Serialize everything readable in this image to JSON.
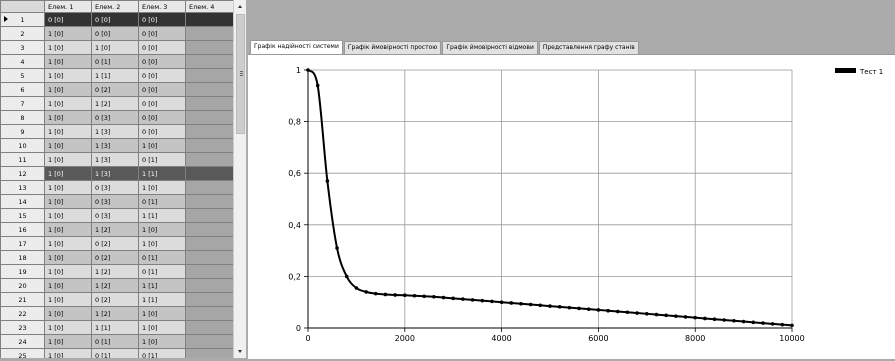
{
  "grid": {
    "columns": [
      "Елем. 1",
      "Елем. 2",
      "Елем. 3",
      "Елем. 4"
    ],
    "rows": [
      {
        "n": "1",
        "e1": "0 [0]",
        "e2": "0 [0]",
        "e3": "0 [0]"
      },
      {
        "n": "2",
        "e1": "1 [0]",
        "e2": "0 [0]",
        "e3": "0 [0]"
      },
      {
        "n": "3",
        "e1": "1 [0]",
        "e2": "1 [0]",
        "e3": "0 [0]"
      },
      {
        "n": "4",
        "e1": "1 [0]",
        "e2": "0 [1]",
        "e3": "0 [0]"
      },
      {
        "n": "5",
        "e1": "1 [0]",
        "e2": "1 [1]",
        "e3": "0 [0]"
      },
      {
        "n": "6",
        "e1": "1 [0]",
        "e2": "0 [2]",
        "e3": "0 [0]"
      },
      {
        "n": "7",
        "e1": "1 [0]",
        "e2": "1 [2]",
        "e3": "0 [0]"
      },
      {
        "n": "8",
        "e1": "1 [0]",
        "e2": "0 [3]",
        "e3": "0 [0]"
      },
      {
        "n": "9",
        "e1": "1 [0]",
        "e2": "1 [3]",
        "e3": "0 [0]"
      },
      {
        "n": "10",
        "e1": "1 [0]",
        "e2": "1 [3]",
        "e3": "1 [0]"
      },
      {
        "n": "11",
        "e1": "1 [0]",
        "e2": "1 [3]",
        "e3": "0 [1]"
      },
      {
        "n": "12",
        "e1": "1 [0]",
        "e2": "1 [3]",
        "e3": "1 [1]"
      },
      {
        "n": "13",
        "e1": "1 [0]",
        "e2": "0 [3]",
        "e3": "1 [0]"
      },
      {
        "n": "14",
        "e1": "1 [0]",
        "e2": "0 [3]",
        "e3": "0 [1]"
      },
      {
        "n": "15",
        "e1": "1 [0]",
        "e2": "0 [3]",
        "e3": "1 [1]"
      },
      {
        "n": "16",
        "e1": "1 [0]",
        "e2": "1 [2]",
        "e3": "1 [0]"
      },
      {
        "n": "17",
        "e1": "1 [0]",
        "e2": "0 [2]",
        "e3": "1 [0]"
      },
      {
        "n": "18",
        "e1": "1 [0]",
        "e2": "0 [2]",
        "e3": "0 [1]"
      },
      {
        "n": "19",
        "e1": "1 [0]",
        "e2": "1 [2]",
        "e3": "0 [1]"
      },
      {
        "n": "20",
        "e1": "1 [0]",
        "e2": "1 [2]",
        "e3": "1 [1]"
      },
      {
        "n": "21",
        "e1": "1 [0]",
        "e2": "0 [2]",
        "e3": "1 [1]"
      },
      {
        "n": "22",
        "e1": "1 [0]",
        "e2": "1 [2]",
        "e3": "1 [0]"
      },
      {
        "n": "23",
        "e1": "1 [0]",
        "e2": "1 [1]",
        "e3": "1 [0]"
      },
      {
        "n": "24",
        "e1": "1 [0]",
        "e2": "0 [1]",
        "e3": "1 [0]"
      },
      {
        "n": "25",
        "e1": "1 [0]",
        "e2": "0 [1]",
        "e3": "0 [1]"
      }
    ],
    "selected_row": "1",
    "highlighted_row": "12"
  },
  "tabs": [
    {
      "label": "Графік надійності системи",
      "active": true
    },
    {
      "label": "Графік ймовірності простою",
      "active": false
    },
    {
      "label": "Графік ймовірності відмови",
      "active": false
    },
    {
      "label": "Представлення графу станів",
      "active": false
    }
  ],
  "chart_data": {
    "type": "line",
    "xlim": [
      0,
      10000
    ],
    "ylim": [
      0,
      1
    ],
    "xticks": [
      "0",
      "2000",
      "4000",
      "6000",
      "8000",
      "10000"
    ],
    "yticks": [
      "0",
      "0,2",
      "0,4",
      "0,6",
      "0,8",
      "1"
    ],
    "grid": true,
    "legend_position": "top-right",
    "series": [
      {
        "name": "Тест 1",
        "x": [
          0,
          200,
          400,
          600,
          800,
          1000,
          1200,
          1400,
          1600,
          1800,
          2000,
          2200,
          2400,
          2600,
          2800,
          3000,
          3200,
          3400,
          3600,
          3800,
          4000,
          4200,
          4400,
          4600,
          4800,
          5000,
          5200,
          5400,
          5600,
          5800,
          6000,
          6200,
          6400,
          6600,
          6800,
          7000,
          7200,
          7400,
          7600,
          7800,
          8000,
          8200,
          8400,
          8600,
          8800,
          9000,
          9200,
          9400,
          9600,
          9800,
          10000
        ],
        "y": [
          1,
          0.94,
          0.57,
          0.31,
          0.2,
          0.155,
          0.14,
          0.133,
          0.13,
          0.128,
          0.127,
          0.125,
          0.123,
          0.121,
          0.118,
          0.115,
          0.112,
          0.109,
          0.106,
          0.103,
          0.1,
          0.097,
          0.094,
          0.091,
          0.088,
          0.085,
          0.082,
          0.079,
          0.076,
          0.073,
          0.07,
          0.067,
          0.064,
          0.061,
          0.058,
          0.055,
          0.052,
          0.049,
          0.046,
          0.043,
          0.04,
          0.037,
          0.034,
          0.031,
          0.028,
          0.025,
          0.022,
          0.019,
          0.016,
          0.013,
          0.01
        ]
      }
    ]
  }
}
